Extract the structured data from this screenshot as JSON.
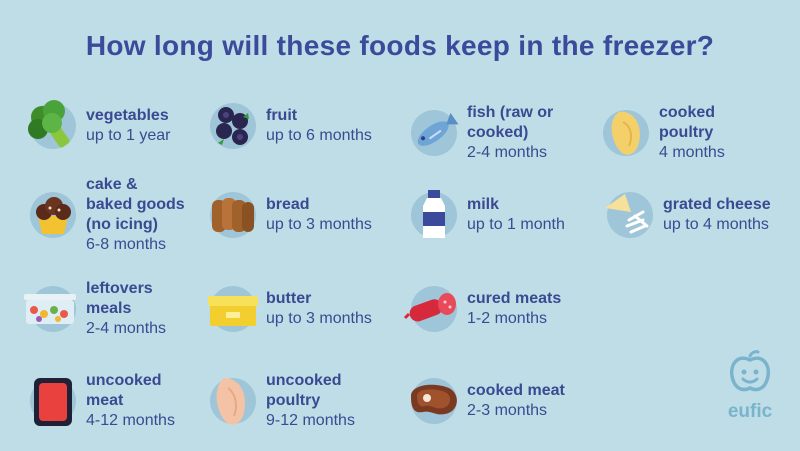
{
  "title": "How long will these foods keep in the freezer?",
  "brand": "eufic",
  "colors": {
    "background": "#bfdde6",
    "text": "#3a4a92",
    "circle": "#9ec6d8",
    "logo": "#7ab4cc"
  },
  "foods": [
    {
      "id": "vegetables",
      "icon": "broccoli-icon",
      "name": "vegetables",
      "duration": "up to 1 year"
    },
    {
      "id": "fruit",
      "icon": "berries-icon",
      "name": "fruit",
      "duration": "up to 6 months"
    },
    {
      "id": "fish",
      "icon": "fish-icon",
      "name": "fish (raw or\ncooked)",
      "duration": "2-4 months"
    },
    {
      "id": "cooked-poultry",
      "icon": "chicken-breast-icon",
      "name": "cooked\npoultry",
      "duration": "4 months"
    },
    {
      "id": "cake",
      "icon": "muffin-icon",
      "name": "cake &\nbaked goods\n(no icing)",
      "duration": "6-8 months"
    },
    {
      "id": "bread",
      "icon": "bread-slices-icon",
      "name": "bread",
      "duration": "up to 3 months"
    },
    {
      "id": "milk",
      "icon": "milk-bottle-icon",
      "name": "milk",
      "duration": "up to 1 month"
    },
    {
      "id": "grated-cheese",
      "icon": "cheese-icon",
      "name": "grated cheese",
      "duration": "up to 4 months"
    },
    {
      "id": "leftovers",
      "icon": "container-icon",
      "name": "leftovers\nmeals",
      "duration": "2-4 months"
    },
    {
      "id": "butter",
      "icon": "butter-icon",
      "name": "butter",
      "duration": "up to 3 months"
    },
    {
      "id": "cured-meats",
      "icon": "salami-icon",
      "name": "cured meats",
      "duration": "1-2 months"
    },
    {
      "id": "uncooked-meat",
      "icon": "meat-tray-icon",
      "name": "uncooked\nmeat",
      "duration": "4-12 months"
    },
    {
      "id": "uncooked-poultry",
      "icon": "raw-chicken-icon",
      "name": "uncooked\npoultry",
      "duration": "9-12 months"
    },
    {
      "id": "cooked-meat",
      "icon": "steak-icon",
      "name": "cooked meat",
      "duration": "2-3 months"
    }
  ]
}
